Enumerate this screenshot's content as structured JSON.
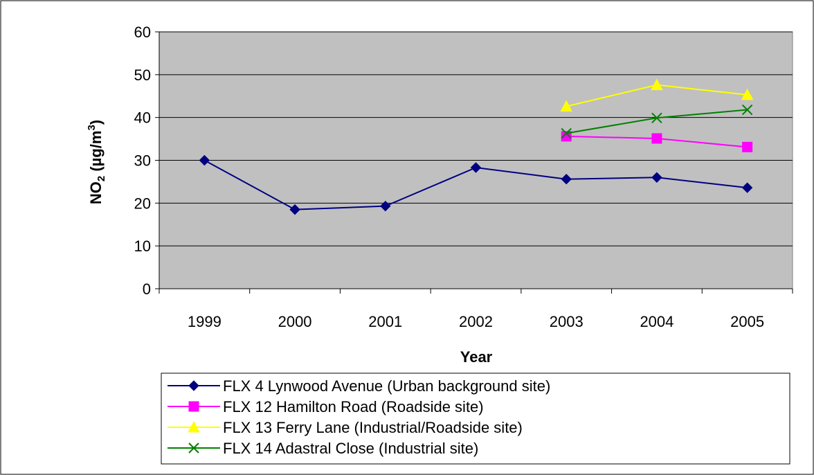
{
  "chart_data": {
    "type": "line",
    "title": "",
    "xlabel": "Year",
    "ylabel": {
      "prefix": "NO",
      "sub": "2",
      "mid": " (µg/m",
      "sup": "3",
      "suffix": ")"
    },
    "categories": [
      "1999",
      "2000",
      "2001",
      "2002",
      "2003",
      "2004",
      "2005"
    ],
    "ylim": [
      0,
      60
    ],
    "yticks": [
      "0",
      "10",
      "20",
      "30",
      "40",
      "50",
      "60"
    ],
    "grid": true,
    "legend_position": "bottom",
    "plot_background": "#c0c0c0",
    "series": [
      {
        "name": "FLX 4 Lynwood Avenue (Urban background site)",
        "color": "#000080",
        "marker": "diamond",
        "values": [
          30.0,
          18.5,
          19.3,
          28.3,
          25.6,
          26.0,
          23.6
        ]
      },
      {
        "name": "FLX 12 Hamilton Road (Roadside site)",
        "color": "#ff00ff",
        "marker": "square",
        "values": [
          null,
          null,
          null,
          null,
          35.6,
          35.1,
          33.1
        ]
      },
      {
        "name": "FLX 13 Ferry Lane (Industrial/Roadside site)",
        "color": "#ffff00",
        "marker": "triangle",
        "values": [
          null,
          null,
          null,
          null,
          42.6,
          47.6,
          45.3
        ]
      },
      {
        "name": "FLX 14 Adastral Close (Industrial site)",
        "color": "#008000",
        "marker": "x",
        "values": [
          null,
          null,
          null,
          null,
          36.3,
          39.9,
          41.8
        ]
      }
    ]
  }
}
